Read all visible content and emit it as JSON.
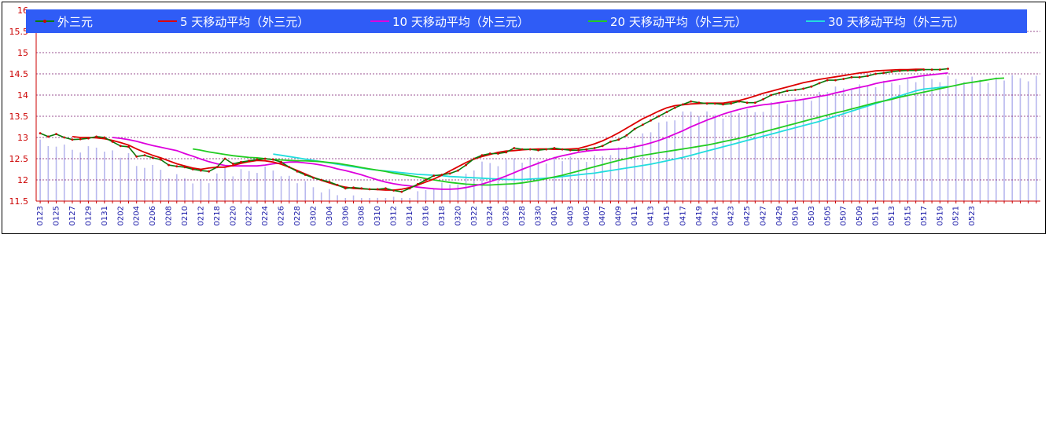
{
  "chart_data": {
    "type": "line",
    "title": "",
    "xlabel": "",
    "ylabel": "",
    "ylim": [
      11.5,
      16
    ],
    "yticks": [
      "11.5",
      "12",
      "12.5",
      "13",
      "13.5",
      "14",
      "14.5",
      "15",
      "15.5",
      "16"
    ],
    "x_tick_labels": [
      "0123",
      "0125",
      "0127",
      "0129",
      "0131",
      "0202",
      "0204",
      "0206",
      "0208",
      "0210",
      "0212",
      "0218",
      "0220",
      "0222",
      "0224",
      "0226",
      "0228",
      "0302",
      "0304",
      "0306",
      "0308",
      "0310",
      "0312",
      "0314",
      "0316",
      "0318",
      "0320",
      "0322",
      "0324",
      "0326",
      "0328",
      "0330",
      "0401",
      "0403",
      "0405",
      "0407",
      "0409",
      "0411",
      "0413",
      "0415",
      "0417",
      "0419",
      "0421",
      "0423",
      "0425",
      "0427",
      "0429",
      "0501",
      "0503",
      "0505",
      "0507",
      "0509",
      "0511",
      "0513",
      "0515",
      "0517",
      "0519",
      "0521",
      "0523"
    ],
    "grid": true,
    "legend_position": "top",
    "colors": {
      "price": "#0a7a0a",
      "price_marker": "#cc0000",
      "ma5": "#dd0000",
      "ma10": "#dd00dd",
      "ma20": "#22cc22",
      "ma30": "#22dddd",
      "volume_bars": "#b8b8ee",
      "grid": "#7a1a6e",
      "legend_bg": "#2f5cf6"
    },
    "series": [
      {
        "name": "外三元",
        "key": "price",
        "x_start": 0,
        "values": [
          13.1,
          13.02,
          13.08,
          13.0,
          12.95,
          12.96,
          12.98,
          13.02,
          13.0,
          12.9,
          12.8,
          12.78,
          12.55,
          12.58,
          12.52,
          12.48,
          12.35,
          12.32,
          12.3,
          12.25,
          12.22,
          12.2,
          12.3,
          12.5,
          12.38,
          12.42,
          12.45,
          12.48,
          12.5,
          12.48,
          12.42,
          12.3,
          12.2,
          12.12,
          12.05,
          12.0,
          11.95,
          11.88,
          11.8,
          11.82,
          11.8,
          11.78,
          11.78,
          11.8,
          11.75,
          11.72,
          11.8,
          11.9,
          12.0,
          12.1,
          12.12,
          12.15,
          12.22,
          12.35,
          12.5,
          12.58,
          12.62,
          12.62,
          12.65,
          12.75,
          12.72,
          12.72,
          12.7,
          12.72,
          12.75,
          12.72,
          12.7,
          12.7,
          12.72,
          12.75,
          12.8,
          12.9,
          12.95,
          13.05,
          13.2,
          13.3,
          13.4,
          13.5,
          13.6,
          13.7,
          13.78,
          13.85,
          13.82,
          13.8,
          13.8,
          13.78,
          13.8,
          13.85,
          13.82,
          13.82,
          13.9,
          14.0,
          14.05,
          14.1,
          14.12,
          14.15,
          14.2,
          14.28,
          14.35,
          14.35,
          14.38,
          14.42,
          14.42,
          14.45,
          14.5,
          14.52,
          14.55,
          14.57,
          14.58,
          14.58,
          14.6,
          14.6,
          14.6,
          14.62
        ]
      },
      {
        "name": "5 天移动平均（外三元）",
        "key": "ma5",
        "x_start": 4,
        "values": [
          13.02,
          13.0,
          13.0,
          12.99,
          12.97,
          12.93,
          12.88,
          12.82,
          12.73,
          12.65,
          12.58,
          12.52,
          12.45,
          12.38,
          12.33,
          12.28,
          12.25,
          12.28,
          12.3,
          12.3,
          12.34,
          12.39,
          12.43,
          12.46,
          12.45,
          12.42,
          12.37,
          12.3,
          12.22,
          12.14,
          12.06,
          11.99,
          11.93,
          11.87,
          11.83,
          11.8,
          11.79,
          11.78,
          11.77,
          11.76,
          11.76,
          11.78,
          11.82,
          11.88,
          11.95,
          12.02,
          12.11,
          12.21,
          12.31,
          12.41,
          12.49,
          12.55,
          12.6,
          12.65,
          12.68,
          12.69,
          12.71,
          12.72,
          12.73,
          12.73,
          12.72,
          12.72,
          12.73,
          12.74,
          12.79,
          12.85,
          12.92,
          13.01,
          13.11,
          13.22,
          13.33,
          13.44,
          13.53,
          13.62,
          13.7,
          13.75,
          13.77,
          13.79,
          13.8,
          13.81,
          13.81,
          13.81,
          13.84,
          13.87,
          13.92,
          13.98,
          14.04,
          14.09,
          14.14,
          14.19,
          14.24,
          14.29,
          14.33,
          14.37,
          14.4,
          14.43,
          14.46,
          14.49,
          14.52,
          14.54,
          14.57,
          14.58,
          14.59,
          14.6,
          14.6,
          14.61,
          14.61
        ]
      },
      {
        "name": "10 天移动平均（外三元）",
        "key": "ma10",
        "x_start": 9,
        "values": [
          13.0,
          12.98,
          12.95,
          12.91,
          12.86,
          12.81,
          12.77,
          12.73,
          12.69,
          12.62,
          12.56,
          12.49,
          12.43,
          12.38,
          12.34,
          12.33,
          12.33,
          12.33,
          12.33,
          12.35,
          12.38,
          12.4,
          12.42,
          12.42,
          12.4,
          12.38,
          12.35,
          12.31,
          12.26,
          12.22,
          12.17,
          12.12,
          12.06,
          12.0,
          11.95,
          11.91,
          11.88,
          11.86,
          11.83,
          11.81,
          11.79,
          11.78,
          11.78,
          11.79,
          11.82,
          11.86,
          11.9,
          11.96,
          12.02,
          12.09,
          12.17,
          12.25,
          12.32,
          12.39,
          12.46,
          12.52,
          12.57,
          12.61,
          12.65,
          12.68,
          12.7,
          12.71,
          12.72,
          12.73,
          12.74,
          12.78,
          12.82,
          12.87,
          12.93,
          13.0,
          13.08,
          13.16,
          13.25,
          13.33,
          13.41,
          13.48,
          13.55,
          13.61,
          13.66,
          13.71,
          13.74,
          13.77,
          13.79,
          13.82,
          13.85,
          13.87,
          13.9,
          13.93,
          13.97,
          14.0,
          14.05,
          14.09,
          14.14,
          14.18,
          14.22,
          14.27,
          14.31,
          14.34,
          14.37,
          14.4,
          14.43,
          14.46,
          14.48,
          14.5,
          14.52
        ]
      },
      {
        "name": "20 天移动平均（外三元）",
        "key": "ma20",
        "x_start": 19,
        "values": [
          12.73,
          12.7,
          12.66,
          12.63,
          12.6,
          12.57,
          12.55,
          12.53,
          12.52,
          12.5,
          12.48,
          12.47,
          12.46,
          12.45,
          12.45,
          12.44,
          12.43,
          12.41,
          12.39,
          12.36,
          12.33,
          12.29,
          12.26,
          12.23,
          12.2,
          12.16,
          12.13,
          12.1,
          12.07,
          12.03,
          12.0,
          11.97,
          11.94,
          11.92,
          11.9,
          11.89,
          11.88,
          11.88,
          11.89,
          11.9,
          11.91,
          11.93,
          11.96,
          11.99,
          12.03,
          12.07,
          12.11,
          12.16,
          12.21,
          12.26,
          12.31,
          12.36,
          12.41,
          12.46,
          12.5,
          12.54,
          12.58,
          12.61,
          12.64,
          12.67,
          12.7,
          12.73,
          12.76,
          12.79,
          12.82,
          12.86,
          12.9,
          12.94,
          12.98,
          13.03,
          13.08,
          13.13,
          13.18,
          13.23,
          13.28,
          13.33,
          13.38,
          13.43,
          13.48,
          13.53,
          13.58,
          13.62,
          13.67,
          13.72,
          13.77,
          13.82,
          13.86,
          13.9,
          13.95,
          13.99,
          14.03,
          14.07,
          14.11,
          14.15,
          14.19,
          14.23,
          14.27,
          14.3,
          14.33,
          14.36,
          14.39,
          14.4
        ]
      },
      {
        "name": "30 天移动平均（外三元）",
        "key": "ma30",
        "x_start": 29,
        "values": [
          12.61,
          12.58,
          12.55,
          12.52,
          12.49,
          12.46,
          12.43,
          12.4,
          12.37,
          12.34,
          12.31,
          12.28,
          12.25,
          12.23,
          12.21,
          12.19,
          12.17,
          12.15,
          12.13,
          12.12,
          12.11,
          12.1,
          12.08,
          12.07,
          12.06,
          12.05,
          12.04,
          12.03,
          12.02,
          12.01,
          12.01,
          12.01,
          12.02,
          12.03,
          12.04,
          12.06,
          12.08,
          12.1,
          12.12,
          12.14,
          12.16,
          12.19,
          12.22,
          12.25,
          12.28,
          12.31,
          12.34,
          12.37,
          12.41,
          12.45,
          12.49,
          12.53,
          12.58,
          12.63,
          12.68,
          12.73,
          12.78,
          12.83,
          12.88,
          12.93,
          12.98,
          13.03,
          13.08,
          13.13,
          13.18,
          13.23,
          13.28,
          13.33,
          13.38,
          13.44,
          13.5,
          13.56,
          13.62,
          13.68,
          13.74,
          13.8,
          13.86,
          13.92,
          13.98,
          14.04,
          14.1,
          14.14,
          14.16,
          14.18,
          14.2
        ]
      }
    ]
  }
}
